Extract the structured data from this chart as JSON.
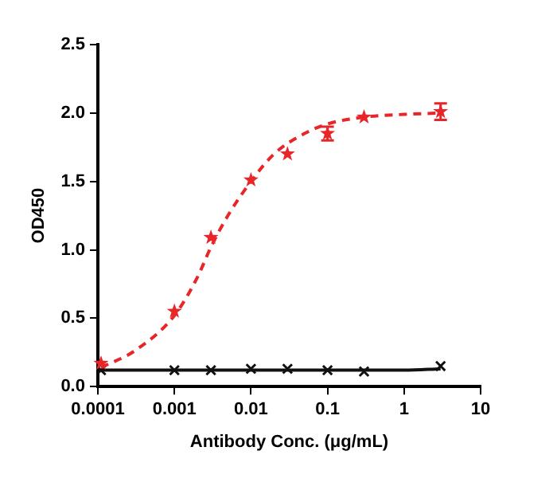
{
  "chart_data": {
    "type": "scatter",
    "xlabel": "Antibody Conc. (μg/mL)",
    "ylabel": "OD450",
    "log": "x",
    "xlim": [
      0.0001,
      10
    ],
    "xticks": [
      0.0001,
      0.001,
      0.01,
      0.1,
      1,
      10
    ],
    "ylim": [
      0,
      2.5
    ],
    "yticks": [
      {
        "value": 0,
        "label": "0.0"
      },
      {
        "value": 0.5,
        "label": "0.5"
      },
      {
        "value": 1,
        "label": "1.0"
      },
      {
        "value": 1.5,
        "label": "1.5"
      },
      {
        "value": 2,
        "label": "2.0"
      },
      {
        "value": 2.5,
        "label": "2.5"
      }
    ],
    "grid": false,
    "legend": false,
    "series": [
      {
        "color": "#e8262a",
        "marker": "star",
        "x": [
          0.00011,
          0.001,
          0.003,
          0.01,
          0.03,
          0.1,
          0.3,
          3
        ],
        "values": [
          0.17,
          0.55,
          1.09,
          1.51,
          1.7,
          1.85,
          1.97,
          2.01
        ],
        "errors": [
          null,
          null,
          null,
          null,
          null,
          0.05,
          null,
          0.06
        ]
      },
      {
        "type": "line",
        "color": "#e8262a",
        "line_style": "dashed",
        "marker": "none",
        "x": [
          0.00011,
          0.0003,
          0.001,
          0.002,
          0.003,
          0.005,
          0.01,
          0.02,
          0.05,
          0.1,
          0.3,
          1,
          3
        ],
        "values": [
          0.14,
          0.26,
          0.52,
          0.8,
          1.02,
          1.25,
          1.5,
          1.7,
          1.85,
          1.92,
          1.97,
          1.99,
          2.0
        ]
      },
      {
        "color": "#111111",
        "marker": "cross",
        "x": [
          0.00011,
          0.001,
          0.003,
          0.01,
          0.03,
          0.1,
          0.3,
          3
        ],
        "values": [
          0.12,
          0.12,
          0.12,
          0.13,
          0.13,
          0.12,
          0.11,
          0.15
        ]
      },
      {
        "type": "line",
        "color": "#111111",
        "line_style": "solid",
        "marker": "none",
        "x": [
          0.00011,
          1,
          3
        ],
        "values": [
          0.12,
          0.12,
          0.13
        ]
      }
    ]
  }
}
